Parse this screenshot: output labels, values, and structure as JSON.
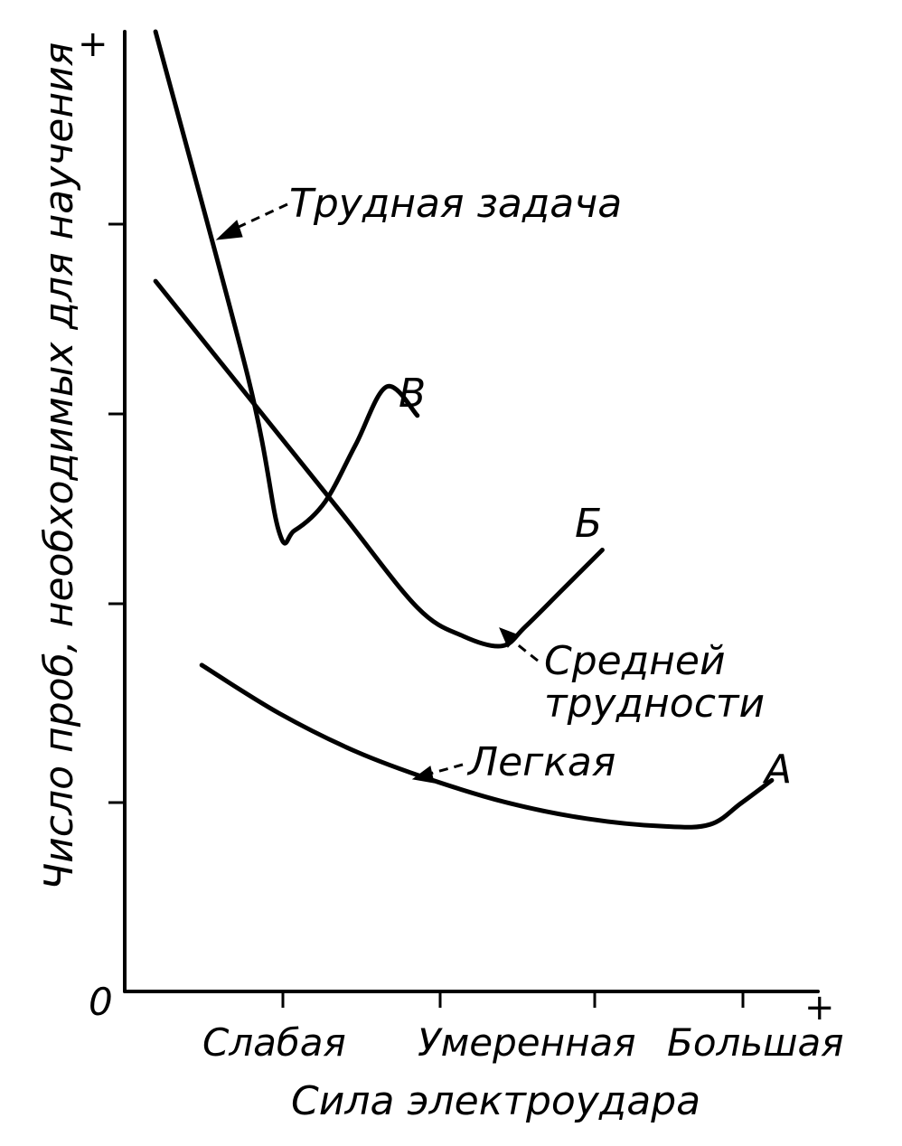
{
  "chart_data": {
    "type": "line",
    "title": "",
    "xlabel": "Сила электроудара",
    "ylabel": "Число проб, необходимых для научения",
    "x_tick_labels": [
      "Слабая",
      "Умеренная",
      "Большая"
    ],
    "origin_label": "0",
    "x_axis_plus": "+",
    "y_axis_plus": "+",
    "xlim": [
      0,
      4.5
    ],
    "ylim": [
      0,
      5
    ],
    "grid": false,
    "series": [
      {
        "name": "Трудная задача",
        "end_label": "В",
        "x": [
          0.2,
          0.8,
          1.0,
          1.1,
          1.3,
          1.5,
          1.7,
          1.9
        ],
        "y": [
          5.0,
          3.2,
          2.4,
          2.4,
          2.55,
          2.85,
          3.15,
          3.0
        ]
      },
      {
        "name": "Средней трудности",
        "end_label": "Б",
        "x": [
          0.2,
          0.8,
          1.4,
          1.9,
          2.2,
          2.45,
          2.6,
          2.85,
          3.1
        ],
        "y": [
          3.7,
          3.1,
          2.5,
          2.0,
          1.85,
          1.8,
          1.9,
          2.1,
          2.3
        ]
      },
      {
        "name": "Легкая",
        "end_label": "А",
        "x": [
          0.5,
          1.0,
          1.5,
          2.0,
          2.5,
          3.0,
          3.5,
          3.8,
          4.0,
          4.2
        ],
        "y": [
          1.7,
          1.45,
          1.25,
          1.1,
          0.98,
          0.9,
          0.86,
          0.87,
          0.98,
          1.1
        ]
      }
    ],
    "annotations": [
      "Трудная задача",
      "Средней",
      "трудности",
      "Легкая",
      "В",
      "Б",
      "А"
    ]
  }
}
